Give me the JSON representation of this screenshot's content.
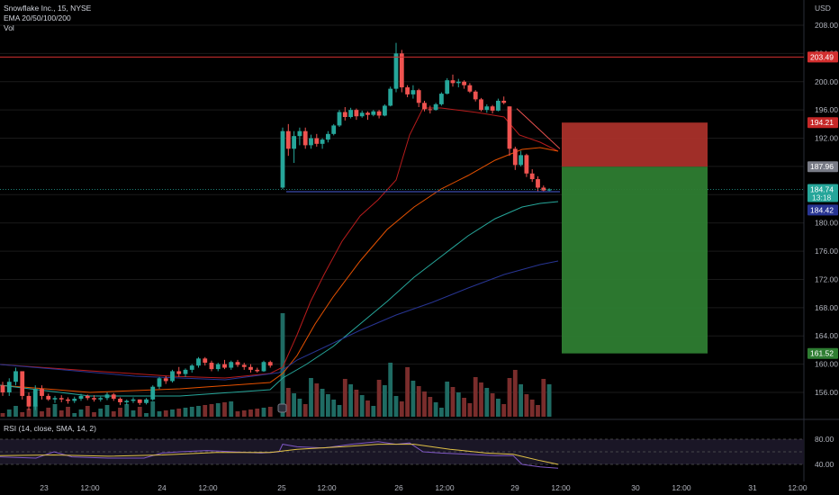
{
  "header": {
    "title": "Snowflake Inc., 15, NYSE",
    "indicator": "EMA 20/50/100/200",
    "volume": "Vol"
  },
  "rsi": {
    "label": "RSI (14, close, SMA, 14, 2)",
    "levels": [
      "80.00",
      "40.00"
    ]
  },
  "price_axis": {
    "currency": "USD",
    "ticks": [
      "208.00",
      "204.00",
      "200.00",
      "196.00",
      "192.00",
      "188.00",
      "184.00",
      "180.00",
      "176.00",
      "172.00",
      "168.00",
      "164.00",
      "160.00",
      "156.00"
    ]
  },
  "price_tags": {
    "resistance": "203.49",
    "stop": "194.21",
    "entry": "187.96",
    "last": "184.74",
    "countdown": "13:18",
    "level": "184.42",
    "target": "161.52"
  },
  "time_axis": {
    "labels": [
      "23",
      "12:00",
      "24",
      "12:00",
      "25",
      "12:00",
      "26",
      "12:00",
      "29",
      "12:00",
      "30",
      "12:00",
      "31",
      "12:00"
    ]
  },
  "colors": {
    "up": "#26a69a",
    "down": "#ef5350",
    "vol_up": "#1f6b63",
    "vol_down": "#7a2d2c",
    "ema20": "#b71c1c",
    "ema50": "#e65100",
    "ema100": "#26a69a",
    "ema200": "#283593",
    "resistance": "#d32f2f",
    "stop_zone": "#a9302a",
    "target_zone": "#2e7d32"
  },
  "chart_data": {
    "type": "candlestick",
    "ylim": [
      152,
      210
    ],
    "candles": [
      [
        157,
        157.5,
        155.5,
        156
      ],
      [
        156,
        158,
        155.5,
        157.5
      ],
      [
        157.5,
        159.5,
        157,
        159
      ],
      [
        159,
        159,
        155,
        155.5
      ],
      [
        155.5,
        156,
        153.5,
        154
      ],
      [
        154,
        157,
        153.5,
        156.5
      ],
      [
        156.5,
        157,
        155,
        155.5
      ],
      [
        155.5,
        155.8,
        154.8,
        155
      ],
      [
        155,
        155.5,
        154.5,
        155.2
      ],
      [
        155.2,
        155.6,
        154.6,
        155
      ],
      [
        155,
        155.3,
        154.4,
        154.8
      ],
      [
        154.8,
        155.4,
        154.5,
        155.1
      ],
      [
        155.1,
        155.8,
        154.8,
        155.5
      ],
      [
        155.5,
        155.7,
        154.9,
        155.2
      ],
      [
        155.2,
        155.6,
        154.7,
        155
      ],
      [
        155,
        155.4,
        154.7,
        155.2
      ],
      [
        155.2,
        156,
        154.9,
        155.7
      ],
      [
        155.7,
        155.9,
        154.8,
        155.1
      ],
      [
        155.1,
        155.3,
        154.2,
        154.6
      ],
      [
        154.6,
        155,
        154.2,
        154.8
      ],
      [
        154.8,
        155.3,
        154.5,
        155
      ],
      [
        155,
        155,
        154.2,
        154.5
      ],
      [
        154.5,
        155.2,
        154.3,
        155
      ],
      [
        155,
        157,
        154.8,
        156.8
      ],
      [
        156.8,
        158.2,
        156.5,
        158
      ],
      [
        158,
        158.3,
        157.2,
        157.6
      ],
      [
        157.6,
        159.2,
        157.4,
        159
      ],
      [
        159,
        159.6,
        158.2,
        158.6
      ],
      [
        158.6,
        159.4,
        158.2,
        159.2
      ],
      [
        159.2,
        160,
        158.8,
        159.8
      ],
      [
        159.8,
        161,
        159.5,
        160.8
      ],
      [
        160.8,
        161,
        159.8,
        160.2
      ],
      [
        160.2,
        160.5,
        159,
        159.3
      ],
      [
        159.3,
        160.2,
        159,
        160
      ],
      [
        160,
        160.6,
        159.3,
        159.5
      ],
      [
        159.5,
        160.5,
        159.2,
        160.3
      ],
      [
        160.3,
        160.6,
        159.6,
        159.9
      ],
      [
        159.9,
        160.2,
        159.2,
        159.6
      ],
      [
        159.6,
        160,
        158.8,
        159.2
      ],
      [
        159.2,
        159.5,
        158.8,
        159
      ],
      [
        159,
        160.5,
        158.9,
        160.3
      ],
      [
        160.3,
        160.5,
        159.5,
        159.8
      ],
      [
        185,
        193.5,
        184.8,
        193
      ],
      [
        193,
        194,
        189.5,
        190.5
      ],
      [
        190.5,
        193,
        188.5,
        192.3
      ],
      [
        192.3,
        193.5,
        191,
        193
      ],
      [
        193,
        193.5,
        190.5,
        191
      ],
      [
        191,
        192.5,
        190.5,
        192
      ],
      [
        192,
        192.6,
        190.8,
        191.2
      ],
      [
        191.2,
        192,
        190.5,
        191.8
      ],
      [
        191.8,
        193,
        191.4,
        192.6
      ],
      [
        192.6,
        194,
        192.4,
        193.8
      ],
      [
        193.8,
        196,
        193.6,
        195.7
      ],
      [
        195.7,
        196.4,
        194.5,
        195
      ],
      [
        195,
        196.3,
        194.8,
        196
      ],
      [
        196,
        196.2,
        194.6,
        195.1
      ],
      [
        195.1,
        195.9,
        194.9,
        195.6
      ],
      [
        195.6,
        195.8,
        194.6,
        195.3
      ],
      [
        195.3,
        196,
        195.1,
        195.8
      ],
      [
        195.8,
        196,
        194.8,
        195.2
      ],
      [
        195.2,
        196.8,
        195.1,
        196.6
      ],
      [
        196.6,
        199.3,
        196.5,
        199
      ],
      [
        199,
        205.5,
        198.5,
        204
      ],
      [
        204,
        204.5,
        198.5,
        199.2
      ],
      [
        199.2,
        199.5,
        197.8,
        198.2
      ],
      [
        198.2,
        199.5,
        197.6,
        198.8
      ],
      [
        198.8,
        199,
        196.4,
        197
      ],
      [
        197,
        197.3,
        195.8,
        196.1
      ],
      [
        196.1,
        196.6,
        195.5,
        196
      ],
      [
        196,
        197,
        195.9,
        196.8
      ],
      [
        196.8,
        198.5,
        196.6,
        198.3
      ],
      [
        198.3,
        200.5,
        198.2,
        200.2
      ],
      [
        200.2,
        201,
        199.3,
        199.8
      ],
      [
        199.8,
        200.4,
        199.2,
        200
      ],
      [
        200,
        200.2,
        199,
        199.5
      ],
      [
        199.5,
        199.8,
        198.4,
        198.6
      ],
      [
        198.6,
        198.8,
        197.2,
        197.5
      ],
      [
        197.5,
        197.7,
        195.8,
        196
      ],
      [
        196,
        196.8,
        195.6,
        196.5
      ],
      [
        196.5,
        196.7,
        195.5,
        195.9
      ],
      [
        195.9,
        197.6,
        195.8,
        197.3
      ],
      [
        197.3,
        197.9,
        196.8,
        197
      ],
      [
        196.5,
        196.5,
        189.5,
        190.5
      ],
      [
        190.5,
        190.8,
        187.5,
        188.2
      ],
      [
        188.2,
        190.2,
        188,
        189.6
      ],
      [
        189.6,
        189.8,
        186.5,
        187
      ],
      [
        187,
        187.6,
        185.8,
        186.2
      ],
      [
        186.2,
        186.6,
        184.5,
        185
      ],
      [
        185,
        185.3,
        184.4,
        184.6
      ],
      [
        184.6,
        184.9,
        184.4,
        184.74
      ]
    ]
  }
}
